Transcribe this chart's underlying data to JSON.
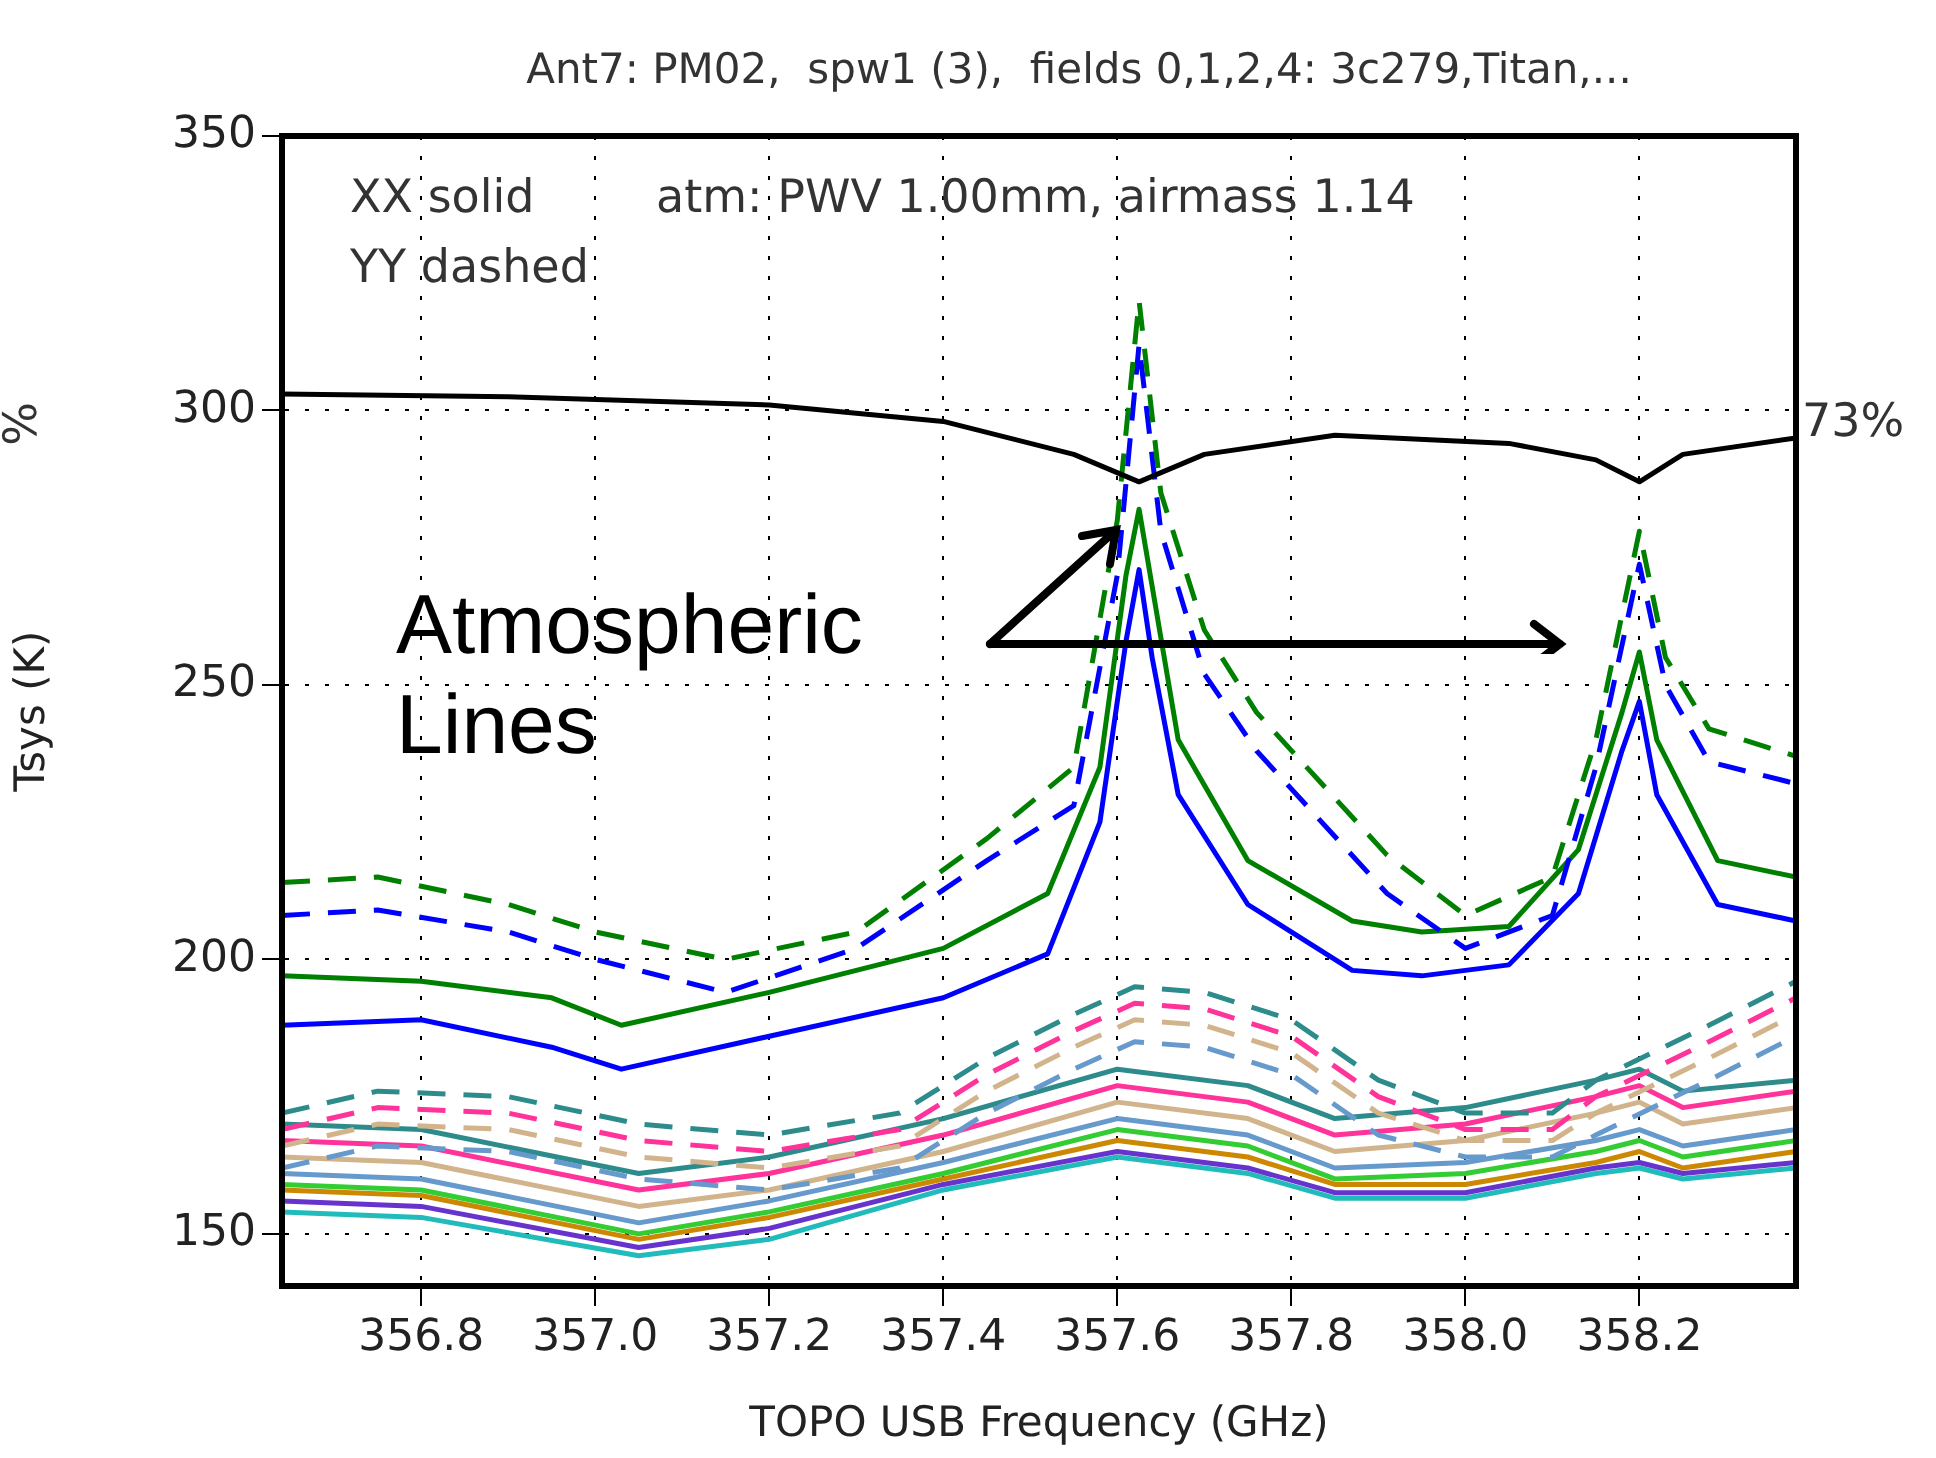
{
  "chart_data": {
    "type": "line",
    "title": "Ant7: PM02,  spw1 (3),  fields 0,1,2,4: 3c279,Titan,...",
    "xlabel": "TOPO USB Frequency (GHz)",
    "ylabel": "Tsys (K)",
    "xlim": [
      356.64,
      358.38
    ],
    "ylim": [
      140.5,
      350
    ],
    "xticks": [
      356.8,
      {
        "value": 357,
        "label": "357.0"
      },
      357.2,
      357.4,
      357.6,
      357.8,
      {
        "value": 358,
        "label": "358.0"
      },
      358.2
    ],
    "yticks": [
      150,
      200,
      250,
      300,
      350
    ],
    "grid": true,
    "legend": false,
    "marker": "none",
    "annotations": [
      "XX solid",
      "YY dashed",
      "atm: PWV 1.00mm, airmass 1.14",
      "Atmospheric Lines",
      "73%",
      "%"
    ],
    "series": [
      {
        "color": "#000000",
        "line_style": "solid",
        "x": [
          356.64,
          356.9,
          357.2,
          357.4,
          357.55,
          357.625,
          357.7,
          357.85,
          358.05,
          358.15,
          358.2,
          358.25,
          358.38
        ],
        "values": [
          303,
          302.5,
          301,
          298,
          292,
          287,
          292,
          295.5,
          294,
          291,
          287,
          292,
          295
        ]
      },
      {
        "color": "#008000",
        "line_style": "dashed",
        "x": [
          356.64,
          356.75,
          356.9,
          357.0,
          357.15,
          357.3,
          357.45,
          357.55,
          357.6,
          357.625,
          357.65,
          357.7,
          357.76,
          357.91,
          358.0,
          358.1,
          358.15,
          358.2,
          358.23,
          358.28,
          358.38
        ],
        "values": [
          214,
          215,
          210,
          205,
          200,
          205,
          222,
          235,
          280,
          320,
          285,
          260,
          245,
          219,
          208,
          215,
          240,
          278,
          255,
          242,
          237
        ]
      },
      {
        "color": "#0000ff",
        "line_style": "dashed",
        "x": [
          356.64,
          356.75,
          356.9,
          357.0,
          357.15,
          357.3,
          357.45,
          357.55,
          357.6,
          357.625,
          357.65,
          357.7,
          357.76,
          357.91,
          358.0,
          358.1,
          358.15,
          358.2,
          358.23,
          358.28,
          358.38
        ],
        "values": [
          208,
          209,
          205,
          200,
          194,
          202,
          218,
          228,
          270,
          312,
          278,
          252,
          238,
          212,
          202,
          208,
          235,
          272,
          250,
          236,
          232
        ]
      },
      {
        "color": "#008000",
        "line_style": "solid",
        "x": [
          356.64,
          356.8,
          356.95,
          357.03,
          357.2,
          357.4,
          357.52,
          357.58,
          357.61,
          357.625,
          357.64,
          357.67,
          357.75,
          357.87,
          357.95,
          358.05,
          358.13,
          358.18,
          358.2,
          358.22,
          358.29,
          358.38
        ],
        "values": [
          197,
          196,
          193,
          188,
          194,
          202,
          212,
          235,
          270,
          282,
          268,
          240,
          218,
          207,
          205,
          206,
          220,
          245,
          256,
          240,
          218,
          215
        ]
      },
      {
        "color": "#0000ff",
        "line_style": "solid",
        "x": [
          356.64,
          356.8,
          356.95,
          357.03,
          357.2,
          357.4,
          357.52,
          357.58,
          357.61,
          357.625,
          357.64,
          357.67,
          357.75,
          357.87,
          357.95,
          358.05,
          358.13,
          358.18,
          358.2,
          358.22,
          358.29,
          358.38
        ],
        "values": [
          188,
          189,
          184,
          180,
          186,
          193,
          201,
          225,
          258,
          271,
          255,
          230,
          210,
          198,
          197,
          199,
          212,
          238,
          247,
          230,
          210,
          207
        ]
      },
      {
        "color": "#2e8b8b",
        "line_style": "dashed",
        "x": [
          356.64,
          356.75,
          356.9,
          357.05,
          357.2,
          357.35,
          357.45,
          357.55,
          357.62,
          357.7,
          357.8,
          357.9,
          358.0,
          358.1,
          358.15,
          358.28,
          358.38
        ],
        "values": [
          172,
          176,
          175,
          170,
          168,
          172,
          182,
          190,
          195,
          194,
          189,
          178,
          172,
          172,
          178,
          188,
          196
        ]
      },
      {
        "color": "#ff3399",
        "line_style": "dashed",
        "x": [
          356.64,
          356.75,
          356.9,
          357.05,
          357.2,
          357.35,
          357.45,
          357.55,
          357.62,
          357.7,
          357.8,
          357.9,
          358.0,
          358.1,
          358.15,
          358.28,
          358.38
        ],
        "values": [
          169,
          173,
          172,
          167,
          165,
          169,
          179,
          187,
          192,
          191,
          186,
          175,
          169,
          169,
          175,
          185,
          193
        ]
      },
      {
        "color": "#d2b48c",
        "line_style": "dashed",
        "x": [
          356.64,
          356.75,
          356.9,
          357.05,
          357.2,
          357.35,
          357.45,
          357.55,
          357.62,
          357.7,
          357.8,
          357.9,
          358.0,
          358.1,
          358.15,
          358.28,
          358.38
        ],
        "values": [
          166,
          170,
          169,
          164,
          162,
          166,
          176,
          184,
          189,
          188,
          183,
          172,
          167,
          167,
          172,
          182,
          190
        ]
      },
      {
        "color": "#6699cc",
        "line_style": "dashed",
        "x": [
          356.64,
          356.75,
          356.9,
          357.05,
          357.2,
          357.35,
          357.45,
          357.55,
          357.62,
          357.7,
          357.8,
          357.9,
          358.0,
          358.1,
          358.15,
          358.28,
          358.38
        ],
        "values": [
          162,
          166,
          165,
          160,
          158,
          162,
          172,
          180,
          185,
          184,
          179,
          168,
          164,
          164,
          168,
          178,
          186
        ]
      },
      {
        "color": "#2e8b8b",
        "line_style": "solid",
        "x": [
          356.64,
          356.8,
          357.05,
          357.2,
          357.4,
          357.6,
          357.75,
          357.85,
          358.0,
          358.15,
          358.2,
          358.25,
          358.38
        ],
        "values": [
          170,
          169,
          161,
          164,
          171,
          180,
          177,
          171,
          173,
          178,
          180,
          176,
          178
        ]
      },
      {
        "color": "#ff3399",
        "line_style": "solid",
        "x": [
          356.64,
          356.8,
          357.05,
          357.2,
          357.4,
          357.6,
          357.75,
          357.85,
          358.0,
          358.15,
          358.2,
          358.25,
          358.38
        ],
        "values": [
          167,
          166,
          158,
          161,
          168,
          177,
          174,
          168,
          170,
          175,
          177,
          173,
          176
        ]
      },
      {
        "color": "#d2b48c",
        "line_style": "solid",
        "x": [
          356.64,
          356.8,
          357.05,
          357.2,
          357.4,
          357.6,
          357.75,
          357.85,
          358.0,
          358.15,
          358.2,
          358.25,
          358.38
        ],
        "values": [
          164,
          163,
          155,
          158,
          165,
          174,
          171,
          165,
          167,
          172,
          174,
          170,
          173
        ]
      },
      {
        "color": "#6699cc",
        "line_style": "solid",
        "x": [
          356.64,
          356.8,
          357.05,
          357.2,
          357.4,
          357.6,
          357.75,
          357.85,
          358.0,
          358.15,
          358.2,
          358.25,
          358.38
        ],
        "values": [
          161,
          160,
          152,
          156,
          163,
          171,
          168,
          162,
          163,
          167,
          169,
          166,
          169
        ]
      },
      {
        "color": "#33cc33",
        "line_style": "solid",
        "x": [
          356.64,
          356.8,
          357.05,
          357.2,
          357.4,
          357.6,
          357.75,
          357.85,
          358.0,
          358.15,
          358.2,
          358.25,
          358.38
        ],
        "values": [
          159,
          158,
          150,
          154,
          161,
          169,
          166,
          160,
          161,
          165,
          167,
          164,
          167
        ]
      },
      {
        "color": "#cc8800",
        "line_style": "solid",
        "x": [
          356.64,
          356.8,
          357.05,
          357.2,
          357.4,
          357.6,
          357.75,
          357.85,
          358.0,
          358.15,
          358.2,
          358.25,
          358.38
        ],
        "values": [
          158,
          157,
          149,
          153,
          160,
          167,
          164,
          159,
          159,
          163,
          165,
          162,
          165
        ]
      },
      {
        "color": "#6633cc",
        "line_style": "solid",
        "x": [
          356.64,
          356.8,
          357.05,
          357.2,
          357.4,
          357.6,
          357.75,
          357.85,
          358.0,
          358.15,
          358.2,
          358.25,
          358.38
        ],
        "values": [
          156,
          155,
          147.5,
          151,
          159,
          165,
          162,
          157.5,
          157.5,
          162,
          163,
          161,
          163
        ]
      },
      {
        "color": "#22bbbb",
        "line_style": "solid",
        "x": [
          356.64,
          356.8,
          357.05,
          357.2,
          357.4,
          357.6,
          357.75,
          357.85,
          358.0,
          358.15,
          358.2,
          358.25,
          358.38
        ],
        "values": [
          154,
          153,
          146,
          149,
          158,
          164,
          161,
          156.5,
          156.5,
          161,
          162,
          160,
          162
        ]
      }
    ]
  }
}
